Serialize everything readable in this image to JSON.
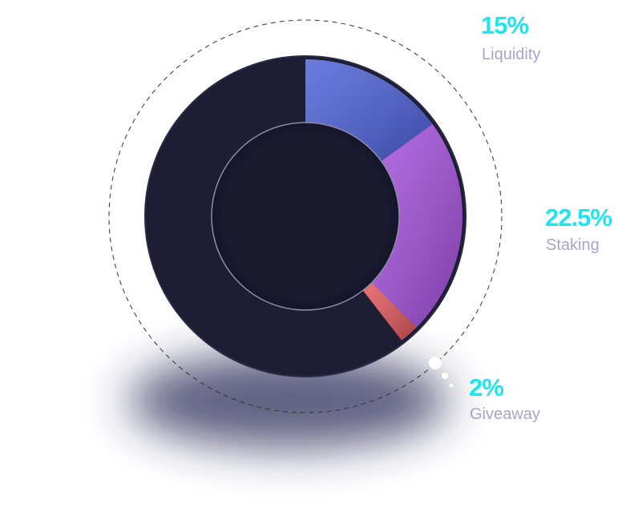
{
  "chart_data": {
    "type": "donut",
    "categories": [
      "Liquidity",
      "Staking",
      "Giveaway"
    ],
    "values": [
      15,
      22.5,
      2
    ],
    "value_labels": [
      "15%",
      "22.5%",
      "2%"
    ],
    "colors": [
      "#4b5fd6",
      "#a44fdc",
      "#e2585a"
    ]
  }
}
